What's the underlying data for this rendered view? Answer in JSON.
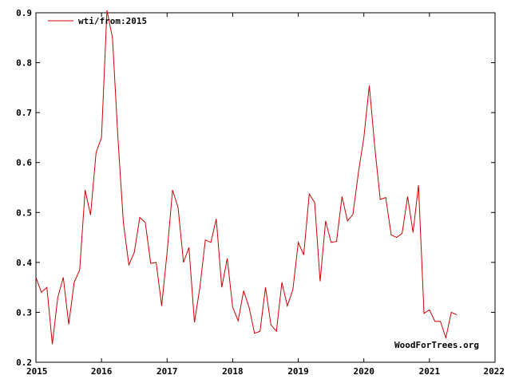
{
  "chart_data": {
    "type": "line",
    "title": "",
    "xlabel": "",
    "ylabel": "",
    "xlim": [
      2015,
      2022
    ],
    "ylim": [
      0.2,
      0.9
    ],
    "x_ticks": [
      "2015",
      "2016",
      "2017",
      "2018",
      "2019",
      "2020",
      "2021",
      "2022"
    ],
    "y_ticks": [
      "0.2",
      "0.3",
      "0.4",
      "0.5",
      "0.6",
      "0.7",
      "0.8",
      "0.9"
    ],
    "grid": false,
    "legend_position": "top-left",
    "credit": "WoodForTrees.org",
    "series": [
      {
        "name": "wti/from:2015",
        "color": "#cc0000",
        "x": [
          2015.0,
          2015.083,
          2015.167,
          2015.25,
          2015.333,
          2015.417,
          2015.5,
          2015.583,
          2015.667,
          2015.75,
          2015.833,
          2015.917,
          2016.0,
          2016.083,
          2016.167,
          2016.25,
          2016.333,
          2016.417,
          2016.5,
          2016.583,
          2016.667,
          2016.75,
          2016.833,
          2016.917,
          2017.0,
          2017.083,
          2017.167,
          2017.25,
          2017.333,
          2017.417,
          2017.5,
          2017.583,
          2017.667,
          2017.75,
          2017.833,
          2017.917,
          2018.0,
          2018.083,
          2018.167,
          2018.25,
          2018.333,
          2018.417,
          2018.5,
          2018.583,
          2018.667,
          2018.75,
          2018.833,
          2018.917,
          2019.0,
          2019.083,
          2019.167,
          2019.25,
          2019.333,
          2019.417,
          2019.5,
          2019.583,
          2019.667,
          2019.75,
          2019.833,
          2019.917,
          2020.0,
          2020.083,
          2020.167,
          2020.25,
          2020.333,
          2020.417,
          2020.5,
          2020.583,
          2020.667,
          2020.75,
          2020.833,
          2020.917,
          2021.0,
          2021.083,
          2021.167,
          2021.25,
          2021.333,
          2021.417
        ],
        "y": [
          0.37,
          0.34,
          0.35,
          0.236,
          0.33,
          0.37,
          0.276,
          0.36,
          0.385,
          0.545,
          0.495,
          0.62,
          0.65,
          0.905,
          0.85,
          0.65,
          0.48,
          0.395,
          0.42,
          0.49,
          0.48,
          0.398,
          0.4,
          0.313,
          0.42,
          0.545,
          0.51,
          0.4,
          0.43,
          0.28,
          0.35,
          0.445,
          0.44,
          0.487,
          0.35,
          0.408,
          0.31,
          0.283,
          0.343,
          0.31,
          0.258,
          0.262,
          0.35,
          0.275,
          0.262,
          0.36,
          0.313,
          0.345,
          0.44,
          0.415,
          0.537,
          0.52,
          0.362,
          0.483,
          0.44,
          0.442,
          0.532,
          0.483,
          0.496,
          0.58,
          0.65,
          0.754,
          0.63,
          0.526,
          0.53,
          0.455,
          0.45,
          0.458,
          0.532,
          0.46,
          0.555,
          0.298,
          0.305,
          0.282,
          0.282,
          0.249,
          0.3,
          0.295
        ]
      }
    ]
  }
}
